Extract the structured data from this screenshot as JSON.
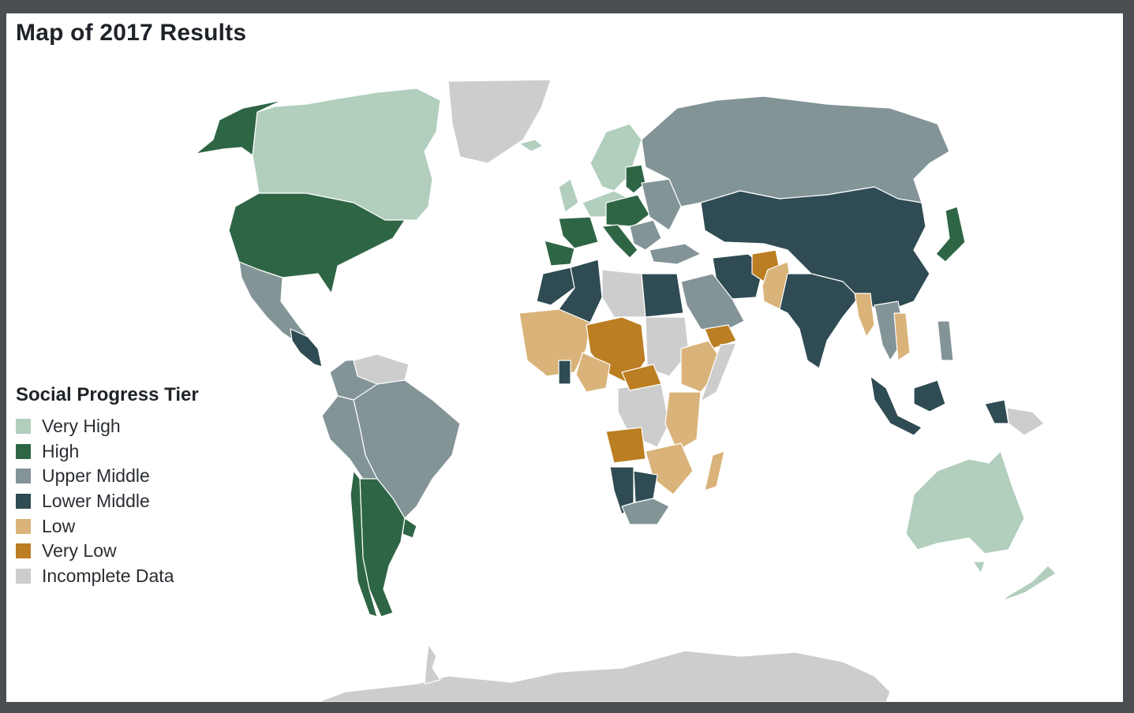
{
  "title": "Map of 2017 Results",
  "legend": {
    "title": "Social Progress Tier",
    "items": [
      {
        "label": "Very High",
        "color": "#b2cebd"
      },
      {
        "label": "High",
        "color": "#2e6645"
      },
      {
        "label": "Upper Middle",
        "color": "#839497"
      },
      {
        "label": "Lower Middle",
        "color": "#2f4b53"
      },
      {
        "label": "Low",
        "color": "#d9b37a"
      },
      {
        "label": "Very Low",
        "color": "#bb7e22"
      },
      {
        "label": "Incomplete Data",
        "color": "#cdcdcd"
      }
    ]
  },
  "colors": {
    "very_high": "#b2cebd",
    "high": "#2e6645",
    "upper_middle": "#839497",
    "lower_middle": "#2f4b53",
    "low": "#d9b37a",
    "very_low": "#bb7e22",
    "incomplete": "#cdcdcd",
    "frame": "#4a4d52"
  }
}
